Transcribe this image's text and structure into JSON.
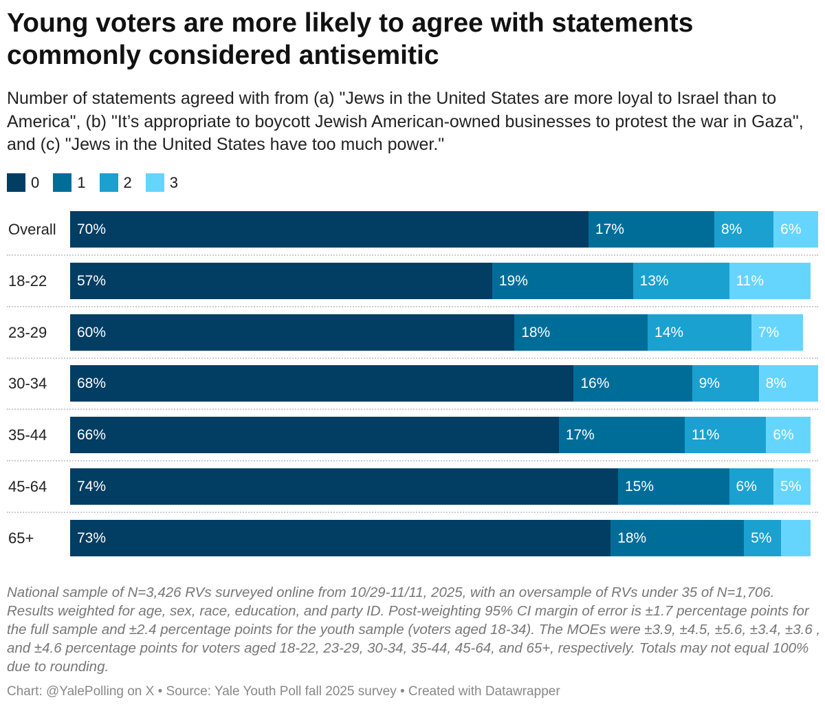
{
  "chart_data": {
    "type": "bar",
    "orientation": "horizontal",
    "stacked": true,
    "title": "Young voters are more likely to agree with statements commonly considered antisemitic",
    "subtitle": "Number of statements agreed with from (a) \"Jews in the United States are more loyal to Israel than to America\", (b) \"It’s appropriate to boycott Jewish American-owned businesses to protest the war in Gaza\", and (c) \"Jews in the United States have too much power.\"",
    "legend_position": "top-left",
    "categories": [
      "Overall",
      "18-22",
      "23-29",
      "30-34",
      "35-44",
      "45-64",
      "65+"
    ],
    "series": [
      {
        "name": "0",
        "color": "#023d63",
        "values": [
          70,
          57,
          60,
          68,
          66,
          74,
          73
        ],
        "labels": [
          "70%",
          "57%",
          "60%",
          "68%",
          "66%",
          "74%",
          "73%"
        ]
      },
      {
        "name": "1",
        "color": "#006d99",
        "values": [
          17,
          19,
          18,
          16,
          17,
          15,
          18
        ],
        "labels": [
          "17%",
          "19%",
          "18%",
          "16%",
          "17%",
          "15%",
          "18%"
        ]
      },
      {
        "name": "2",
        "color": "#1aa1d0",
        "values": [
          8,
          13,
          14,
          9,
          11,
          6,
          5
        ],
        "labels": [
          "8%",
          "13%",
          "14%",
          "9%",
          "11%",
          "6%",
          "5%"
        ]
      },
      {
        "name": "3",
        "color": "#66d5fd",
        "values": [
          6,
          11,
          7,
          8,
          6,
          5,
          4
        ],
        "labels": [
          "6%",
          "11%",
          "7%",
          "8%",
          "6%",
          "5%",
          ""
        ]
      }
    ],
    "grid": false
  },
  "notes": "National sample of N=3,426 RVs surveyed online from 10/29-11/11, 2025, with an oversample of RVs under 35 of N=1,706. Results weighted for age, sex, race, education, and party ID. Post-weighting 95% CI margin of error is ±1.7 percentage points for the full sample and ±2.4 percentage points for the youth sample (voters aged 18-34). The MOEs were ±3.9, ±4.5, ±5.6, ±3.4, ±3.6 , and ±4.6 percentage points for voters aged 18-22, 23-29, 30-34, 35-44, 45-64, and 65+, respectively. Totals may not equal 100% due to rounding.",
  "footer": "Chart: @YalePolling on X • Source: Yale Youth Poll fall 2025 survey • Created with Datawrapper"
}
